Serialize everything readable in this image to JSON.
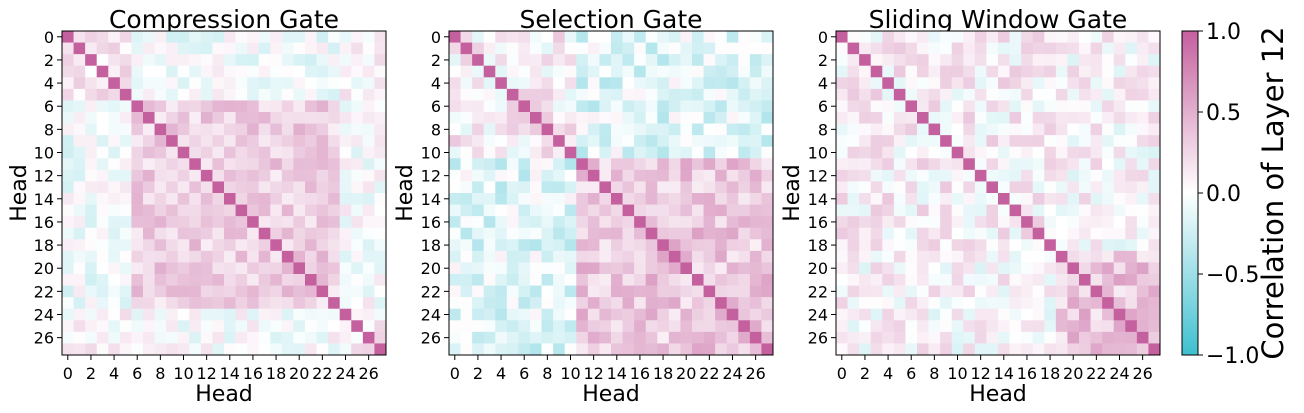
{
  "chart_data": {
    "type": "heatmap",
    "n_heads": 28,
    "value_range": [
      -1.0,
      1.0
    ],
    "colormap": {
      "negative": "#3ebfcf",
      "zero": "#ffffff",
      "positive": "#c5609e"
    },
    "colorbar": {
      "label": "Correlation of Layer 12",
      "ticks": [
        1.0,
        0.5,
        0.0,
        -0.5,
        -1.0
      ],
      "tick_labels": [
        "1.0",
        "0.5",
        "0.0",
        "−0.5",
        "−1.0"
      ]
    },
    "panels": [
      {
        "title": "Compression Gate",
        "xlabel": "Head",
        "ylabel": "Head",
        "ytick_labels": [
          "0",
          "2",
          "4",
          "6",
          "8",
          "10",
          "12",
          "14",
          "16",
          "18",
          "20",
          "22",
          "24",
          "26"
        ],
        "xtick_labels": [
          "0",
          "2",
          "4",
          "6",
          "8",
          "10",
          "12",
          "14",
          "16",
          "18",
          "20",
          "22",
          "24",
          "26"
        ],
        "head_groups": [
          0,
          0,
          0,
          0,
          0,
          0,
          1,
          1,
          1,
          1,
          1,
          1,
          1,
          1,
          1,
          1,
          1,
          1,
          1,
          1,
          1,
          1,
          1,
          1,
          2,
          2,
          2,
          2
        ],
        "group_correlation": [
          [
            0.15,
            -0.05,
            0.05
          ],
          [
            -0.05,
            0.3,
            0.0
          ],
          [
            0.05,
            0.0,
            0.1
          ]
        ],
        "cell_variation": 0.2,
        "diagonal": 1.0
      },
      {
        "title": "Selection Gate",
        "xlabel": "Head",
        "ylabel": "Head",
        "ytick_labels": [
          "0",
          "2",
          "4",
          "6",
          "8",
          "10",
          "12",
          "14",
          "16",
          "18",
          "20",
          "22",
          "24",
          "26"
        ],
        "xtick_labels": [
          "0",
          "2",
          "4",
          "6",
          "8",
          "10",
          "12",
          "14",
          "16",
          "18",
          "20",
          "22",
          "24",
          "26"
        ],
        "head_groups": [
          0,
          0,
          0,
          0,
          0,
          0,
          0,
          0,
          0,
          0,
          0,
          1,
          1,
          1,
          1,
          1,
          1,
          1,
          1,
          1,
          1,
          1,
          1,
          1,
          1,
          1,
          1,
          1
        ],
        "group_correlation": [
          [
            0.1,
            -0.15
          ],
          [
            -0.15,
            0.35
          ]
        ],
        "cell_variation": 0.25,
        "diagonal": 1.0
      },
      {
        "title": "Sliding Window Gate",
        "xlabel": "Head",
        "ylabel": "Head",
        "ytick_labels": [
          "0",
          "2",
          "4",
          "6",
          "8",
          "10",
          "12",
          "14",
          "16",
          "18",
          "20",
          "22",
          "24",
          "26"
        ],
        "xtick_labels": [
          "0",
          "2",
          "4",
          "6",
          "8",
          "10",
          "12",
          "14",
          "16",
          "18",
          "20",
          "22",
          "24",
          "26"
        ],
        "head_groups": [
          0,
          0,
          0,
          0,
          0,
          0,
          0,
          0,
          0,
          0,
          0,
          0,
          0,
          0,
          0,
          0,
          0,
          0,
          0,
          1,
          1,
          1,
          1,
          1,
          1,
          1,
          1,
          1
        ],
        "group_correlation": [
          [
            0.1,
            0.05
          ],
          [
            0.05,
            0.35
          ]
        ],
        "cell_variation": 0.25,
        "diagonal": 1.0
      }
    ]
  }
}
